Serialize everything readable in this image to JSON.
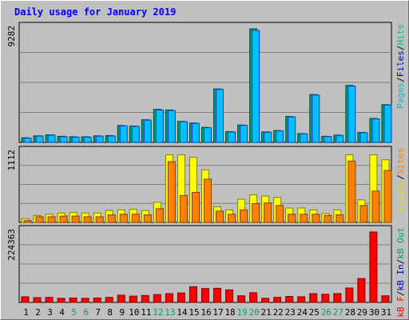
{
  "chart_data": {
    "type": "bar",
    "title": "Daily usage for January 2019",
    "categories": [
      "1",
      "2",
      "3",
      "4",
      "5",
      "6",
      "7",
      "8",
      "9",
      "10",
      "11",
      "12",
      "13",
      "14",
      "15",
      "16",
      "17",
      "18",
      "19",
      "20",
      "21",
      "22",
      "23",
      "24",
      "25",
      "26",
      "27",
      "28",
      "29",
      "30",
      "31"
    ],
    "weekend_days": [
      "5",
      "6",
      "12",
      "13",
      "19",
      "20",
      "26",
      "27"
    ],
    "panels": [
      {
        "id": "pages-files-hits",
        "ylabel": [
          "Pages",
          "/",
          "Files",
          "/",
          "Hits"
        ],
        "ylabel_colors": [
          "#00c0c0",
          "#000000",
          "#0000c0",
          "#000000",
          "#00c080"
        ],
        "max_label": "9282",
        "ylim": [
          0,
          9282
        ],
        "series": [
          {
            "name": "Hits",
            "color": "#00a070",
            "values": [
              380,
              540,
              620,
              500,
              460,
              460,
              540,
              560,
              1380,
              1340,
              1850,
              2700,
              2650,
              1720,
              1590,
              1230,
              4370,
              880,
              1420,
              9282,
              860,
              970,
              2120,
              720,
              3910,
              500,
              600,
              4660,
              820,
              1960,
              3090
            ]
          },
          {
            "name": "Files",
            "color": "#00c0ff",
            "values": [
              350,
              520,
              600,
              470,
              430,
              430,
              510,
              530,
              1350,
              1310,
              1820,
              2650,
              2600,
              1690,
              1560,
              1200,
              4330,
              850,
              1390,
              9150,
              830,
              940,
              2080,
              700,
              3870,
              480,
              570,
              4600,
              790,
              1920,
              3050
            ]
          }
        ]
      },
      {
        "id": "visits-sites",
        "ylabel": [
          "Visits",
          "/",
          "Sites"
        ],
        "ylabel_colors": [
          "#e0e000",
          "#000000",
          "#ff8000"
        ],
        "max_label": "1112",
        "ylim": [
          0,
          1112
        ],
        "series": [
          {
            "name": "Visits",
            "color": "#ffff00",
            "values": [
              60,
              110,
              130,
              150,
              160,
              150,
              150,
              190,
              200,
              210,
              190,
              320,
              1080,
              1080,
              1040,
              840,
              250,
              200,
              370,
              440,
              420,
              400,
              230,
              230,
              200,
              140,
              200,
              1080,
              360,
              1080,
              1000
            ]
          },
          {
            "name": "Sites",
            "color": "#ff8000",
            "values": [
              30,
              90,
              90,
              100,
              100,
              90,
              90,
              120,
              130,
              130,
              120,
              220,
              970,
              430,
              480,
              690,
              180,
              130,
              200,
              300,
              310,
              270,
              130,
              130,
              130,
              110,
              120,
              980,
              270,
              500,
              830
            ]
          }
        ]
      },
      {
        "id": "kb",
        "ylabel": [
          "kB F",
          "/",
          "kB In",
          "/",
          "kB Out"
        ],
        "ylabel_colors": [
          "#ff0000",
          "#000000",
          "#0000c0",
          "#000000",
          "#00a070"
        ],
        "max_label": "224363",
        "ylim": [
          0,
          224363
        ],
        "series": [
          {
            "name": "kB F",
            "color": "#ff0000",
            "values": [
              18000,
              15000,
              16000,
              13000,
              14000,
              13000,
              14000,
              16000,
              23000,
              20000,
              22000,
              25000,
              28000,
              30000,
              50000,
              44000,
              45000,
              40000,
              21000,
              31000,
              13000,
              16000,
              19000,
              18000,
              28000,
              26000,
              28000,
              46000,
              76000,
              224363,
              21000
            ]
          }
        ]
      }
    ]
  }
}
